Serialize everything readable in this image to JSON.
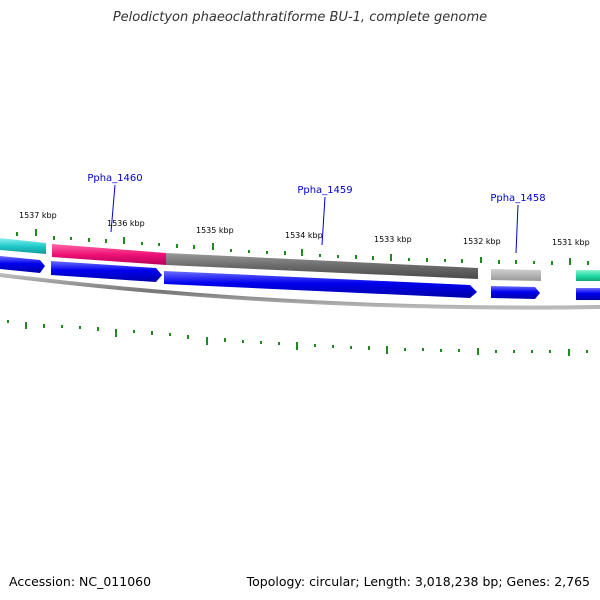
{
  "title": "Pelodictyon phaeoclathratiforme BU-1, complete genome",
  "footer": {
    "accession": "Accession: NC_011060",
    "summary": "Topology: circular; Length: 3,018,238 bp; Genes: 2,765"
  },
  "colors": {
    "forward_cds": "#0000ee",
    "cds_gray": "#6a6a6a",
    "cds_light_gray": "#a8a8a8",
    "cds_magenta": "#ee1177",
    "cds_cyan": "#22cccc",
    "cds_green": "#22ddaa",
    "backbone": "#707070",
    "gc_ticks": "#228822",
    "gene_label": "#0000cc"
  },
  "scale_labels": [
    "1537 kbp",
    "1536 kbp",
    "1535 kbp",
    "1534 kbp",
    "1533 kbp",
    "1532 kbp",
    "1531 kbp"
  ],
  "gene_labels": [
    "Ppha_1460",
    "Ppha_1459",
    "Ppha_1458"
  ]
}
